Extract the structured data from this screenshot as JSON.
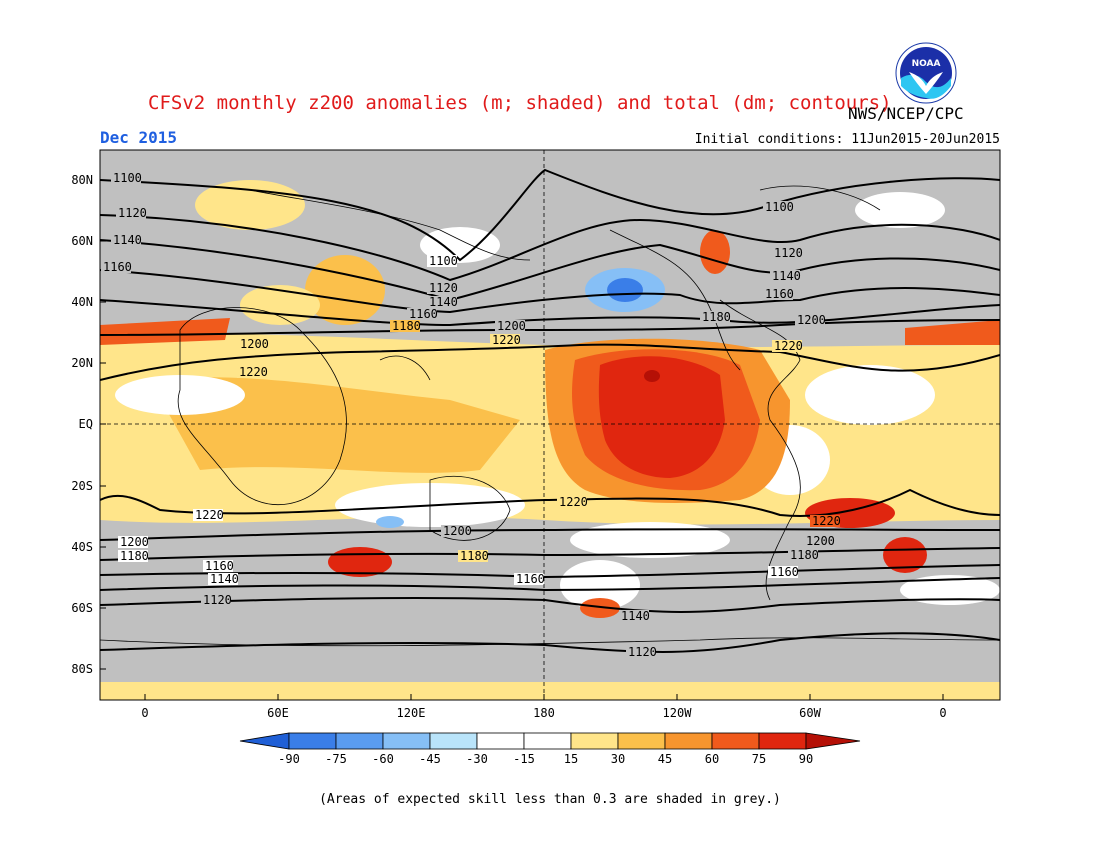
{
  "header": {
    "title": "CFSv2 monthly z200 anomalies (m; shaded) and total (dm; contours)",
    "org": "NWS/NCEP/CPC",
    "month": "Dec 2015",
    "initial": "Initial conditions: 11Jun2015-20Jun2015",
    "logo_text": "NOAA"
  },
  "axes": {
    "lat_labels": [
      "80N",
      "60N",
      "40N",
      "20N",
      "EQ",
      "20S",
      "40S",
      "60S",
      "80S"
    ],
    "lon_labels": [
      "0",
      "60E",
      "120E",
      "180",
      "120W",
      "60W",
      "0"
    ]
  },
  "contours": [
    {
      "label": "1100"
    },
    {
      "label": "1120"
    },
    {
      "label": "1140"
    },
    {
      "label": "1160"
    },
    {
      "label": "1180"
    },
    {
      "label": "1200"
    },
    {
      "label": "1220"
    }
  ],
  "colorbar": {
    "labels": [
      "-90",
      "-75",
      "-60",
      "-45",
      "-30",
      "-15",
      "15",
      "30",
      "45",
      "60",
      "75",
      "90"
    ],
    "colors": [
      "#1f5fd6",
      "#3a7ee8",
      "#5a9cf0",
      "#86bff6",
      "#b9e4fa",
      "#ffffff",
      "#ffe58a",
      "#fbc04b",
      "#f7952e",
      "#f05a1c",
      "#e0260f",
      "#b51006"
    ]
  },
  "footnote": "(Areas of expected skill less than 0.3 are shaded in grey.)",
  "colors": {
    "grey": "#c0c0c0",
    "title": "#e01a1a",
    "month": "#1f5fe0"
  }
}
